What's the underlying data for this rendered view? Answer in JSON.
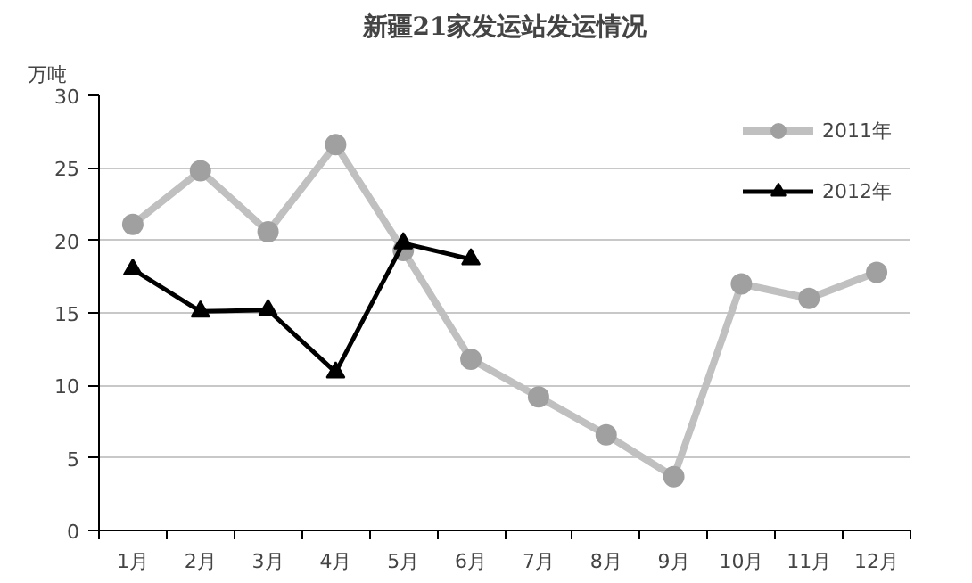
{
  "chart_data": {
    "type": "line",
    "title": "新疆21家发运站发运情况",
    "ylabel": "万吨",
    "categories": [
      "1月",
      "2月",
      "3月",
      "4月",
      "5月",
      "6月",
      "7月",
      "8月",
      "9月",
      "10月",
      "11月",
      "12月"
    ],
    "series": [
      {
        "name": "2011年",
        "color": "#c0c0c0",
        "marker": "circle",
        "values": [
          21.1,
          24.8,
          20.6,
          26.6,
          19.3,
          11.8,
          9.2,
          6.6,
          3.7,
          17.0,
          16.0,
          17.8
        ]
      },
      {
        "name": "2012年",
        "color": "#000000",
        "marker": "triangle",
        "values": [
          18.0,
          15.1,
          15.2,
          10.9,
          19.8,
          18.7,
          null,
          null,
          null,
          null,
          null,
          null
        ]
      }
    ],
    "ylim": [
      0,
      30
    ],
    "yticks": [
      0,
      5,
      10,
      15,
      20,
      25,
      30
    ],
    "grid": "y",
    "legend": "top right"
  }
}
